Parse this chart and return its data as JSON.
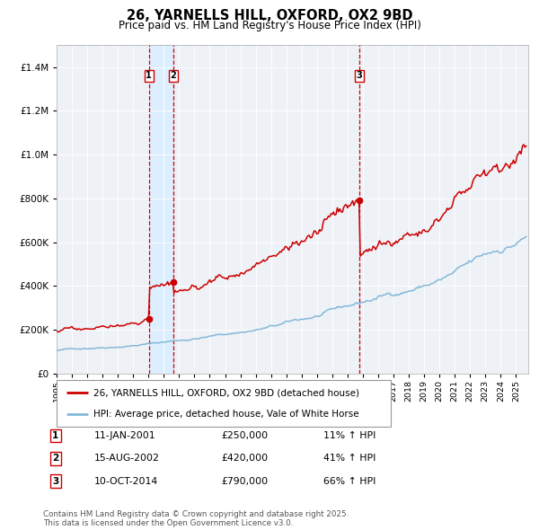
{
  "title": "26, YARNELLS HILL, OXFORD, OX2 9BD",
  "subtitle": "Price paid vs. HM Land Registry's House Price Index (HPI)",
  "legend_line1": "26, YARNELLS HILL, OXFORD, OX2 9BD (detached house)",
  "legend_line2": "HPI: Average price, detached house, Vale of White Horse",
  "footer": "Contains HM Land Registry data © Crown copyright and database right 2025.\nThis data is licensed under the Open Government Licence v3.0.",
  "transactions": [
    {
      "num": 1,
      "date": "11-JAN-2001",
      "date_x": 2001.03,
      "price": 250000,
      "label": "11% ↑ HPI"
    },
    {
      "num": 2,
      "date": "15-AUG-2002",
      "date_x": 2002.62,
      "price": 420000,
      "label": "41% ↑ HPI"
    },
    {
      "num": 3,
      "date": "10-OCT-2014",
      "date_x": 2014.78,
      "price": 790000,
      "label": "66% ↑ HPI"
    }
  ],
  "hpi_color": "#85b8d8",
  "price_color": "#cc0000",
  "vline_color": "#cc0000",
  "shade_color": "#ddeeff",
  "ylim": [
    0,
    1500000
  ],
  "xlim": [
    1995.0,
    2025.8
  ],
  "bg_color": "#eef2f7",
  "plot_bg": "#eef2f7"
}
